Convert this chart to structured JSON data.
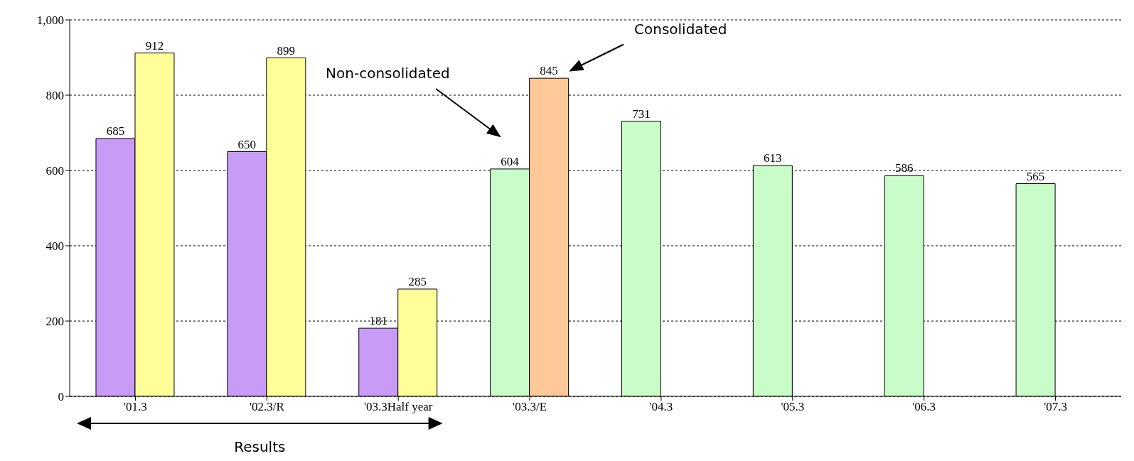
{
  "chart_data": {
    "type": "bar",
    "categories": [
      "'01.3",
      "'02.3/R",
      "'03.3Half year",
      "'03.3/E",
      "'04.3",
      "'05.3",
      "'06.3",
      "'07.3"
    ],
    "series": [
      {
        "colors": [
          "#c89bf7",
          "#c89bf7",
          "#c89bf7",
          "#c8fcc8",
          "#c8fcc8",
          "#c8fcc8",
          "#c8fcc8",
          "#c8fcc8"
        ],
        "values": [
          685,
          650,
          181,
          604,
          731,
          613,
          586,
          565
        ]
      },
      {
        "colors": [
          "#ffff99",
          "#ffff99",
          "#ffff99",
          "#ffc898",
          null,
          null,
          null,
          null
        ],
        "values": [
          912,
          899,
          285,
          845,
          null,
          null,
          null,
          null
        ]
      }
    ],
    "ylim": [
      0,
      1000
    ],
    "yticks": [
      0,
      200,
      400,
      600,
      800,
      {
        "value": 1000,
        "label": "1,000"
      }
    ],
    "grid": "y",
    "data_labels": true,
    "annotations": [
      "Consolidated",
      "Non-consolidated",
      "Results"
    ]
  }
}
